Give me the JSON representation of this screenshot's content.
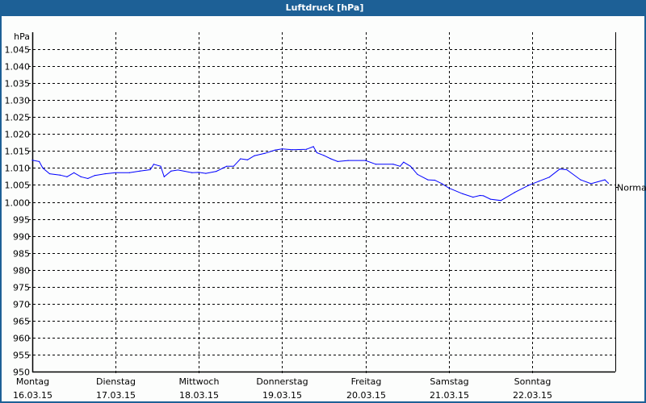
{
  "window": {
    "title": "Luftdruck [hPa]"
  },
  "chart_data": {
    "type": "line",
    "title": "Luftdruck [hPa]",
    "ylabel": "hPa",
    "ylim": [
      950,
      1050
    ],
    "yticks": [
      "950",
      "955",
      "960",
      "965",
      "970",
      "975",
      "980",
      "985",
      "990",
      "995",
      "1.000",
      "1.005",
      "1.010",
      "1.015",
      "1.020",
      "1.025",
      "1.030",
      "1.035",
      "1.040",
      "1.045"
    ],
    "ytick_values": [
      950,
      955,
      960,
      965,
      970,
      975,
      980,
      985,
      990,
      995,
      1000,
      1005,
      1010,
      1015,
      1020,
      1025,
      1030,
      1035,
      1040,
      1045
    ],
    "xlim": [
      "16.03.15 00:00",
      "23.03.15 00:00"
    ],
    "xticks": [
      {
        "day": "Montag",
        "date": "16.03.15"
      },
      {
        "day": "Dienstag",
        "date": "17.03.15"
      },
      {
        "day": "Mittwoch",
        "date": "18.03.15"
      },
      {
        "day": "Donnerstag",
        "date": "19.03.15"
      },
      {
        "day": "Freitag",
        "date": "20.03.15"
      },
      {
        "day": "Samstag",
        "date": "21.03.15"
      },
      {
        "day": "Sonntag",
        "date": "22.03.15"
      }
    ],
    "grid": true,
    "line_color": "#0000ff",
    "annotation": {
      "label": "Normal",
      "value": 1004.3
    },
    "series": [
      {
        "x": [
          "16.03.15 00:00",
          "16.03.15 02:00",
          "16.03.15 03:00",
          "16.03.15 05:00",
          "16.03.15 08:00",
          "16.03.15 10:00",
          "16.03.15 12:00",
          "16.03.15 14:00",
          "16.03.15 16:00",
          "16.03.15 18:00",
          "16.03.15 21:00",
          "17.03.15 00:00",
          "17.03.15 04:00",
          "17.03.15 07:00",
          "17.03.15 10:00",
          "17.03.15 11:00",
          "17.03.15 13:00",
          "17.03.15 14:00",
          "17.03.15 16:00",
          "17.03.15 18:00",
          "17.03.15 22:00",
          "18.03.15 00:00",
          "18.03.15 02:00",
          "18.03.15 05:00",
          "18.03.15 08:00",
          "18.03.15 10:00",
          "18.03.15 12:00",
          "18.03.15 14:00",
          "18.03.15 16:00",
          "18.03.15 19:00",
          "18.03.15 22:00",
          "19.03.15 00:00",
          "19.03.15 03:00",
          "19.03.15 07:00",
          "19.03.15 09:00",
          "19.03.15 10:00",
          "19.03.15 12:00",
          "19.03.15 14:00",
          "19.03.15 16:00",
          "19.03.15 19:00",
          "20.03.15 00:00",
          "20.03.15 03:00",
          "20.03.15 08:00",
          "20.03.15 10:00",
          "20.03.15 11:00",
          "20.03.15 13:00",
          "20.03.15 15:00",
          "20.03.15 18:00",
          "20.03.15 20:00",
          "20.03.15 22:00",
          "21.03.15 00:00",
          "21.03.15 04:00",
          "21.03.15 07:00",
          "21.03.15 09:00",
          "21.03.15 10:00",
          "21.03.15 12:00",
          "21.03.15 15:00",
          "21.03.15 19:00",
          "21.03.15 23:00",
          "22.03.15 02:00",
          "22.03.15 05:00",
          "22.03.15 08:00",
          "22.03.15 10:00",
          "22.03.15 14:00",
          "22.03.15 17:00",
          "22.03.15 21:00",
          "22.03.15 22:00"
        ],
        "y": [
          1012.3,
          1011.9,
          1010.0,
          1008.3,
          1007.9,
          1007.4,
          1008.6,
          1007.4,
          1006.9,
          1007.8,
          1008.3,
          1008.6,
          1008.6,
          1009.1,
          1009.5,
          1011.1,
          1010.5,
          1007.4,
          1009.1,
          1009.4,
          1008.6,
          1008.7,
          1008.4,
          1009.0,
          1010.5,
          1010.5,
          1012.7,
          1012.4,
          1013.6,
          1014.3,
          1015.3,
          1015.6,
          1015.4,
          1015.5,
          1016.3,
          1014.5,
          1013.7,
          1012.7,
          1011.9,
          1012.2,
          1012.2,
          1011.1,
          1011.1,
          1010.5,
          1011.7,
          1010.5,
          1008.1,
          1006.5,
          1006.4,
          1005.4,
          1004.1,
          1002.4,
          1001.4,
          1001.9,
          1001.8,
          1000.8,
          1000.4,
          1002.8,
          1004.9,
          1006.1,
          1007.3,
          1009.7,
          1009.5,
          1006.5,
          1005.4,
          1006.5,
          1005.5
        ]
      }
    ]
  }
}
